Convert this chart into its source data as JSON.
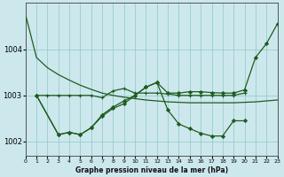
{
  "title": "Graphe pression niveau de la mer (hPa)",
  "bg_color": "#cce8ed",
  "grid_color": "#99cccc",
  "line_color": "#1f5c1f",
  "xlim": [
    0,
    23
  ],
  "ylim": [
    1001.7,
    1005.0
  ],
  "yticks": [
    1002,
    1003,
    1004
  ],
  "xticks": [
    0,
    1,
    2,
    3,
    4,
    5,
    6,
    7,
    8,
    9,
    10,
    11,
    12,
    13,
    14,
    15,
    16,
    17,
    18,
    19,
    20,
    21,
    22,
    23
  ],
  "series": [
    {
      "x": [
        0,
        1,
        2,
        3,
        4,
        5,
        6,
        7,
        8,
        9,
        10,
        11,
        12,
        13,
        14,
        15,
        16,
        17,
        18,
        19,
        20,
        21,
        22,
        23
      ],
      "y": [
        1004.75,
        1003.82,
        1003.6,
        1003.45,
        1003.33,
        1003.22,
        1003.13,
        1003.05,
        1003.0,
        1002.96,
        1002.93,
        1002.9,
        1002.88,
        1002.86,
        1002.85,
        1002.84,
        1002.84,
        1002.84,
        1002.84,
        1002.84,
        1002.85,
        1002.86,
        1002.88,
        1002.9
      ],
      "marker": null
    },
    {
      "x": [
        1,
        2,
        3,
        4,
        5,
        6,
        7,
        8,
        9,
        10,
        11,
        12,
        13,
        14,
        15,
        16,
        17,
        18,
        19,
        20
      ],
      "y": [
        1003.0,
        1003.0,
        1003.0,
        1003.0,
        1003.0,
        1003.0,
        1002.95,
        1003.1,
        1003.15,
        1003.05,
        1003.05,
        1003.05,
        1003.03,
        1003.0,
        1003.0,
        1003.0,
        1003.0,
        1003.0,
        1003.0,
        1003.05
      ],
      "marker": "+"
    },
    {
      "x": [
        1,
        3,
        4,
        5,
        6,
        7,
        8,
        9,
        10,
        11,
        12,
        13,
        14,
        15,
        16,
        17,
        18,
        19,
        20,
        21,
        22,
        23
      ],
      "y": [
        1003.0,
        1002.15,
        1002.2,
        1002.15,
        1002.3,
        1002.58,
        1002.75,
        1002.88,
        1003.0,
        1003.18,
        1003.28,
        1003.05,
        1003.05,
        1003.08,
        1003.08,
        1003.06,
        1003.05,
        1003.05,
        1003.12,
        1003.82,
        1004.12,
        1004.55
      ],
      "marker": "D"
    },
    {
      "x": [
        1,
        3,
        4,
        5,
        6,
        7,
        8,
        9,
        10,
        11,
        12,
        13,
        14,
        15,
        16,
        17,
        18,
        19,
        20
      ],
      "y": [
        1003.0,
        1002.15,
        1002.2,
        1002.15,
        1002.3,
        1002.55,
        1002.72,
        1002.82,
        1003.0,
        1003.18,
        1003.28,
        1002.68,
        1002.38,
        1002.28,
        1002.18,
        1002.12,
        1002.12,
        1002.45,
        1002.45
      ],
      "marker": "D"
    }
  ]
}
